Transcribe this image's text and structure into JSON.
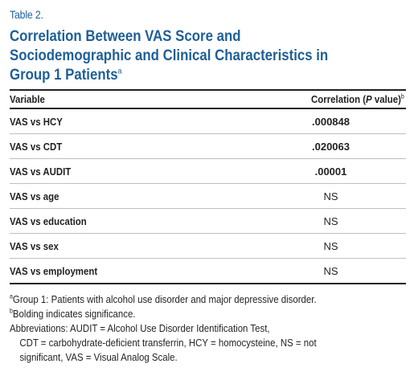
{
  "table_label": "Table 2.",
  "title": {
    "line1": "Correlation Between VAS Score and",
    "line2": "Sociodemographic and Clinical Characteristics in",
    "line3": "Group 1 Patients",
    "superscript": "a"
  },
  "header": {
    "variable": "Variable",
    "correlation_prefix": "Correlation (",
    "correlation_p": "P",
    "correlation_suffix": " value)",
    "superscript": "b"
  },
  "rows": [
    {
      "variable": "VAS vs HCY",
      "value": ".000848",
      "significant": true
    },
    {
      "variable": "VAS vs CDT",
      "value": ".020063",
      "significant": true
    },
    {
      "variable": "VAS vs AUDIT",
      "value": ".00001",
      "significant": true
    },
    {
      "variable": "VAS vs age",
      "value": "NS",
      "significant": false
    },
    {
      "variable": "VAS vs education",
      "value": "NS",
      "significant": false
    },
    {
      "variable": "VAS vs sex",
      "value": "NS",
      "significant": false
    },
    {
      "variable": "VAS vs employment",
      "value": "NS",
      "significant": false
    }
  ],
  "footnotes": {
    "a_mark": "a",
    "a_text": "Group 1: Patients with alcohol use disorder and major depressive disorder.",
    "b_mark": "b",
    "b_text": "Bolding indicates significance.",
    "abbr_line1": "Abbreviations: AUDIT = Alcohol Use Disorder Identification Test,",
    "abbr_line2": "CDT = carbohydrate-deficient transferrin, HCY = homocysteine, NS = not",
    "abbr_line3": "significant, VAS = Visual Analog Scale."
  },
  "colors": {
    "title": "#1f5f96",
    "text": "#231f20"
  }
}
